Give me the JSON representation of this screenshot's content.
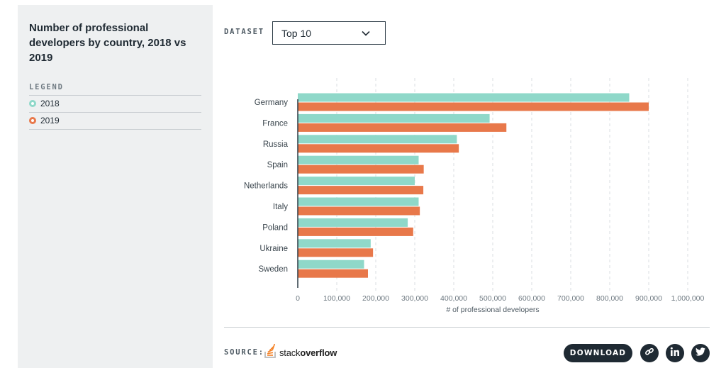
{
  "sidebar": {
    "title": "Number of professional developers by country, 2018 vs 2019",
    "legend_heading": "LEGEND",
    "legend": [
      {
        "label": "2018",
        "color": "#8fd8c9"
      },
      {
        "label": "2019",
        "color": "#e8784a"
      }
    ]
  },
  "dataset": {
    "label": "DATASET",
    "selected": "Top 10"
  },
  "footer": {
    "source_label": "SOURCE:",
    "logo_text_light": "stack",
    "logo_text_bold": "overflow",
    "download_label": "DOWNLOAD",
    "icons": [
      "link-icon",
      "linkedin-icon",
      "twitter-icon"
    ]
  },
  "chart_data": {
    "type": "bar",
    "orientation": "horizontal",
    "categories": [
      "Germany",
      "France",
      "Russia",
      "Spain",
      "Netherlands",
      "Italy",
      "Poland",
      "Ukraine",
      "Sweden"
    ],
    "series": [
      {
        "name": "2018",
        "color": "#8fd8c9",
        "values": [
          850000,
          492000,
          408000,
          310000,
          300000,
          310000,
          282000,
          187000,
          170000
        ]
      },
      {
        "name": "2019",
        "color": "#e8784a",
        "values": [
          900000,
          535000,
          413000,
          323000,
          322000,
          313000,
          296000,
          193000,
          180000
        ]
      }
    ],
    "xlabel": "# of professional developers",
    "xlim": [
      0,
      1000000
    ],
    "xticks": [
      "0",
      "100,000",
      "200,000",
      "300,000",
      "400,000",
      "500,000",
      "600,000",
      "700,000",
      "800,000",
      "900,000",
      "1,000,000"
    ],
    "grid": "vertical dashed"
  }
}
